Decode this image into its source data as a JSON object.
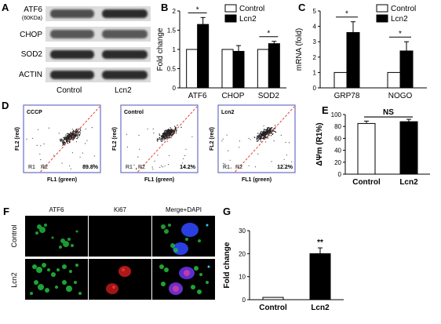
{
  "panels": {
    "A": "A",
    "B": "B",
    "C": "C",
    "D": "D",
    "E": "E",
    "F": "F",
    "G": "G"
  },
  "blot": {
    "rows": [
      {
        "label": "ATF6",
        "sublabel": "(60KDa)"
      },
      {
        "label": "CHOP",
        "sublabel": ""
      },
      {
        "label": "SOD2",
        "sublabel": ""
      },
      {
        "label": "ACTIN",
        "sublabel": ""
      }
    ],
    "lanes": [
      "Control",
      "Lcn2"
    ]
  },
  "legend": {
    "control": "Control",
    "lcn2": "Lcn2"
  },
  "colors": {
    "control": "#ffffff",
    "lcn2": "#000000",
    "scatter_diag": "#e0433a",
    "frame": "#6a6fc8"
  },
  "flow": {
    "plots": [
      {
        "title": "CCCP",
        "percent": "89.8%"
      },
      {
        "title": "Control",
        "percent": "14.2%"
      },
      {
        "title": "Lcn2",
        "percent": "12.2%"
      }
    ],
    "xlabel": "FL1 (green)",
    "ylabel": "FL2 (red)",
    "gate_r1": "R1",
    "gate_r2": "R2"
  },
  "microscopy": {
    "columns": [
      "ATF6",
      "Ki67",
      "Merge+DAPI"
    ],
    "rows": [
      "Control",
      "Lcn2"
    ]
  },
  "chart_data": [
    {
      "panel": "B",
      "type": "bar",
      "categories": [
        "ATF6",
        "CHOP",
        "SOD2"
      ],
      "series": [
        {
          "name": "Control",
          "values": [
            1,
            1,
            1
          ],
          "errors": [
            0,
            0,
            0
          ]
        },
        {
          "name": "Lcn2",
          "values": [
            1.65,
            0.95,
            1.15
          ],
          "errors": [
            0.18,
            0.15,
            0.06
          ]
        }
      ],
      "ylabel": "Fold change",
      "ylim": [
        0,
        2
      ],
      "yticks": [
        "0",
        "0.5",
        "1",
        "1.5",
        "2"
      ],
      "significance": [
        {
          "category": "ATF6",
          "mark": "*"
        },
        {
          "category": "SOD2",
          "mark": "*"
        }
      ]
    },
    {
      "panel": "C",
      "type": "bar",
      "categories": [
        "GRP78",
        "NOGO"
      ],
      "series": [
        {
          "name": "Control",
          "values": [
            1,
            1
          ],
          "errors": [
            0,
            0
          ]
        },
        {
          "name": "Lcn2",
          "values": [
            3.6,
            2.4
          ],
          "errors": [
            0.7,
            0.6
          ]
        }
      ],
      "ylabel": "mRNA (fold)",
      "ylim": [
        0,
        5
      ],
      "yticks": [
        "0",
        "1",
        "2",
        "3",
        "4",
        "5"
      ],
      "significance": [
        {
          "category": "GRP78",
          "mark": "*"
        },
        {
          "category": "NOGO",
          "mark": "*"
        }
      ]
    },
    {
      "panel": "E",
      "type": "bar",
      "categories": [
        "Control",
        "Lcn2"
      ],
      "values": [
        85,
        88
      ],
      "errors": [
        4,
        4
      ],
      "fills": [
        "#ffffff",
        "#000000"
      ],
      "ylabel": "ΔΨm (R1%)",
      "ylim": [
        0,
        100
      ],
      "yticks": [
        "0",
        "20",
        "40",
        "60",
        "80",
        "100"
      ],
      "significance_label": "NS"
    },
    {
      "panel": "G",
      "type": "bar",
      "categories": [
        "Control",
        "Lcn2"
      ],
      "values": [
        1,
        20
      ],
      "errors": [
        0,
        2.5
      ],
      "fills": [
        "#ffffff",
        "#000000"
      ],
      "ylabel": "Fold change",
      "ylim": [
        0,
        30
      ],
      "yticks": [
        "0",
        "10",
        "20",
        "30"
      ],
      "significance_label": "**"
    }
  ]
}
